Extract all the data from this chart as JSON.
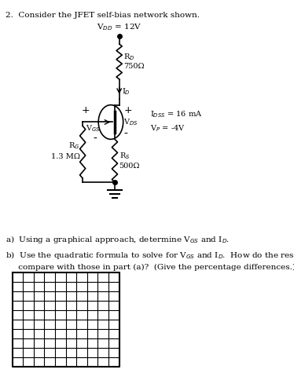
{
  "bg_color": "#ffffff",
  "text_color": "#000000",
  "title": "2.  Consider the JFET self-bias network shown.",
  "vdd_text": "V$_{DD}$ = 12V",
  "rd_label": "R$_D$",
  "rd_value": "750Ω",
  "id_label": "I$_D$",
  "vds_plus": "+",
  "vds_label": "V$_{DS}$",
  "vds_minus": "-",
  "idss_label": "I$_{DSS}$ = 16 mA",
  "vp_label": "V$_P$ = -4V",
  "vgs_plus": "+",
  "vgs_label": "V$_{GS}$",
  "vgs_minus": "-",
  "rg_label": "R$_G$",
  "rg_value": "1.3 MΩ",
  "rs_label": "R$_S$",
  "rs_value": "500Ω",
  "qa": "a)  Using a graphical approach, determine V$_{GS}$ and I$_D$.",
  "qb1": "b)  Use the quadratic formula to solve for V$_{GS}$ and I$_D$.  How do the results",
  "qb2": "     compare with those in part (a)?  (Give the percentage differences.)",
  "grid_rows": 10,
  "grid_cols": 10
}
